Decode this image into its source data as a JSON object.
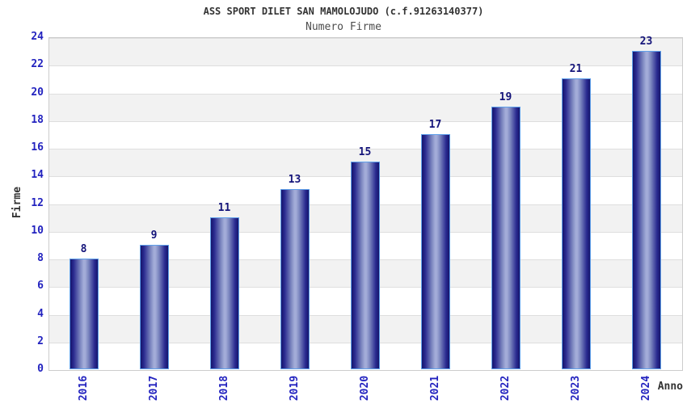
{
  "chart_data": {
    "type": "bar",
    "title": "ASS SPORT DILET SAN MAMOLOJUDO (c.f.91263140377)",
    "subtitle": "Numero Firme",
    "xlabel": "Anno",
    "ylabel": "Firme",
    "categories": [
      "2016",
      "2017",
      "2018",
      "2019",
      "2020",
      "2021",
      "2022",
      "2023",
      "2024"
    ],
    "values": [
      8,
      9,
      11,
      13,
      15,
      17,
      19,
      21,
      23
    ],
    "ylim": [
      0,
      24
    ],
    "ytick_step": 2,
    "grid": "horizontal-bands-alternating",
    "legend_position": "none",
    "colors": {
      "tick_label": "#2323bf",
      "value_label": "#14147a",
      "bar_edge": "#15156b",
      "bar_center": "#a3acd8",
      "bar_border": "#5fa0ea",
      "band_gray": "#f2f2f2",
      "band_white": "#ffffff",
      "plot_border": "#cccccc",
      "axis_title": "#333333",
      "title_text": "#333333"
    }
  }
}
